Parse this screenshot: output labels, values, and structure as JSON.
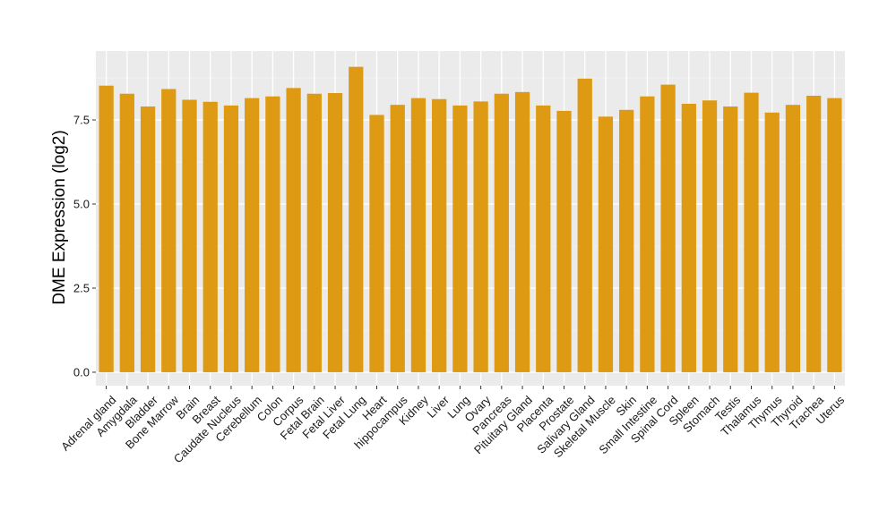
{
  "chart_data": {
    "type": "bar",
    "title": "",
    "xlabel": "",
    "ylabel": "DME Expression (log2)",
    "ylim": [
      -0.4,
      9.55
    ],
    "yticks": [
      0.0,
      2.5,
      5.0,
      7.5
    ],
    "ytick_labels": [
      "0.0",
      "2.5",
      "5.0",
      "7.5"
    ],
    "grid": true,
    "legend": "none",
    "colors": {
      "bar": "#DE9A12",
      "panel": "#EBEBEB",
      "grid_major": "#FFFFFF",
      "grid_minor": "#F5F5F5",
      "tick": "#333333"
    },
    "categories": [
      "Adrenal gland",
      "Amygdala",
      "Bladder",
      "Bone Marrow",
      "Brain",
      "Breast",
      "Caudate Nucleus",
      "Cerebellum",
      "Colon",
      "Corpus",
      "Fetal Brain",
      "Fetal Liver",
      "Fetal Lung",
      "Heart",
      "hippocampus",
      "Kidney",
      "Liver",
      "Lung",
      "Ovary",
      "Pancreas",
      "Pituitary Gland",
      "Placenta",
      "Prostate",
      "Salivary Gland",
      "Skeletal Muscle",
      "Skin",
      "Small Intestine",
      "Spinal Cord",
      "Spleen",
      "Stomach",
      "Testis",
      "Thalamus",
      "Thymus",
      "Thyroid",
      "Trachea",
      "Uterus"
    ],
    "values": [
      8.52,
      8.28,
      7.9,
      8.42,
      8.1,
      8.04,
      7.93,
      8.15,
      8.2,
      8.45,
      8.28,
      8.3,
      9.08,
      7.65,
      7.95,
      8.15,
      8.12,
      7.93,
      8.05,
      8.28,
      8.33,
      7.93,
      7.77,
      8.73,
      7.6,
      7.8,
      8.2,
      8.55,
      7.98,
      8.08,
      7.9,
      8.31,
      7.72,
      7.95,
      8.22,
      8.15
    ]
  }
}
